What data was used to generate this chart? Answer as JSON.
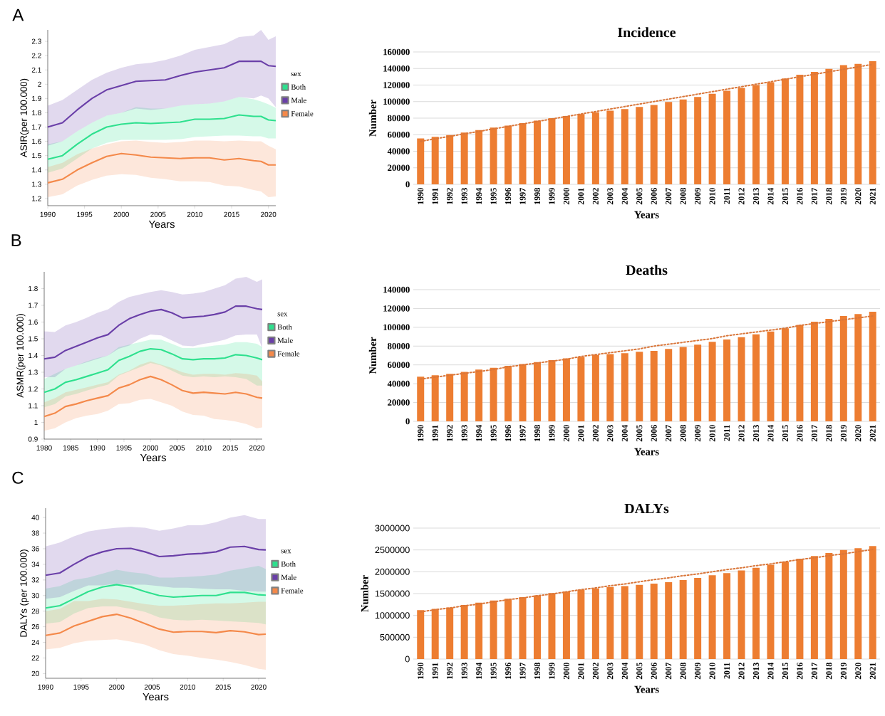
{
  "chart_data": [
    {
      "type": "line",
      "title": "A",
      "xlabel": "Years",
      "ylabel": "ASIR(per 100.000)",
      "legend_title": "sex",
      "legend": "right",
      "xlim": [
        1990,
        2021
      ],
      "ylim": [
        1.15,
        2.38
      ],
      "xticks": [
        1990,
        1995,
        2000,
        2005,
        2010,
        2015,
        2020
      ],
      "yticks": [
        1.2,
        1.3,
        1.4,
        1.5,
        1.6,
        1.7,
        1.8,
        1.9,
        2,
        2.1,
        2.2,
        2.3
      ],
      "x": [
        1990,
        1992,
        1994,
        1996,
        1998,
        2000,
        2002,
        2004,
        2006,
        2008,
        2010,
        2012,
        2014,
        2016,
        2018,
        2019,
        2020,
        2021
      ],
      "series": [
        {
          "name": "Both",
          "color": "#2ee08e",
          "values": [
            1.475,
            1.5,
            1.58,
            1.65,
            1.7,
            1.72,
            1.73,
            1.725,
            1.73,
            1.735,
            1.755,
            1.755,
            1.76,
            1.785,
            1.775,
            1.775,
            1.75,
            1.745
          ],
          "upper": [
            1.58,
            1.6,
            1.67,
            1.73,
            1.78,
            1.8,
            1.84,
            1.83,
            1.83,
            1.85,
            1.86,
            1.865,
            1.88,
            1.91,
            1.895,
            1.88,
            1.86,
            1.835
          ],
          "lower": [
            1.38,
            1.41,
            1.48,
            1.55,
            1.59,
            1.61,
            1.61,
            1.61,
            1.61,
            1.615,
            1.63,
            1.635,
            1.64,
            1.64,
            1.635,
            1.635,
            1.62,
            1.62
          ]
        },
        {
          "name": "Male",
          "color": "#6a3fa8",
          "values": [
            1.7,
            1.73,
            1.82,
            1.9,
            1.96,
            1.99,
            2.02,
            2.025,
            2.03,
            2.06,
            2.085,
            2.1,
            2.115,
            2.16,
            2.16,
            2.16,
            2.13,
            2.125
          ],
          "upper": [
            1.85,
            1.89,
            1.96,
            2.03,
            2.08,
            2.115,
            2.14,
            2.15,
            2.17,
            2.2,
            2.24,
            2.26,
            2.28,
            2.33,
            2.34,
            2.38,
            2.31,
            2.335
          ],
          "lower": [
            1.57,
            1.6,
            1.67,
            1.73,
            1.78,
            1.8,
            1.83,
            1.82,
            1.83,
            1.85,
            1.86,
            1.865,
            1.88,
            1.91,
            1.9,
            1.92,
            1.9,
            1.84
          ]
        },
        {
          "name": "Female",
          "color": "#f4894a",
          "values": [
            1.31,
            1.335,
            1.4,
            1.45,
            1.495,
            1.515,
            1.505,
            1.49,
            1.485,
            1.48,
            1.485,
            1.485,
            1.47,
            1.48,
            1.465,
            1.46,
            1.435,
            1.435
          ],
          "upper": [
            1.42,
            1.45,
            1.51,
            1.55,
            1.58,
            1.6,
            1.605,
            1.595,
            1.59,
            1.595,
            1.605,
            1.605,
            1.6,
            1.605,
            1.6,
            1.6,
            1.57,
            1.545
          ],
          "lower": [
            1.21,
            1.23,
            1.29,
            1.33,
            1.36,
            1.37,
            1.365,
            1.345,
            1.335,
            1.32,
            1.32,
            1.315,
            1.29,
            1.285,
            1.26,
            1.25,
            1.21,
            1.215
          ]
        }
      ]
    },
    {
      "type": "bar",
      "title": "Incidence",
      "xlabel": "Years",
      "ylabel": "Number",
      "grid": "y",
      "ylim": [
        0,
        160000
      ],
      "yticks": [
        0,
        20000,
        40000,
        60000,
        80000,
        100000,
        120000,
        140000,
        160000
      ],
      "categories": [
        "1990",
        "1991",
        "1992",
        "1993",
        "1994",
        "1995",
        "1996",
        "1997",
        "1998",
        "1999",
        "2000",
        "2001",
        "2002",
        "2003",
        "2004",
        "2005",
        "2006",
        "2007",
        "2008",
        "2009",
        "2010",
        "2011",
        "2012",
        "2013",
        "2014",
        "2015",
        "2016",
        "2017",
        "2018",
        "2019",
        "2020",
        "2021"
      ],
      "series": [
        {
          "color": "#ed7d31",
          "values": [
            55500,
            57500,
            59500,
            62500,
            65500,
            68500,
            71000,
            74000,
            77000,
            80000,
            82500,
            85000,
            87000,
            89000,
            91000,
            93500,
            96000,
            99500,
            102500,
            105500,
            109500,
            113000,
            116500,
            120000,
            123500,
            128000,
            132500,
            136000,
            139500,
            144000,
            145500,
            149000
          ]
        },
        {
          "type": "line",
          "values": [
            52000,
            55000,
            58000,
            61000,
            64000,
            67000,
            70000,
            73000,
            76000,
            79000,
            82000,
            85000,
            88000,
            91000,
            94000,
            97000,
            100000,
            103000,
            106000,
            109000,
            112000,
            115000,
            118000,
            121000,
            124000,
            127000,
            130000,
            133000,
            136000,
            139000,
            142000,
            145000
          ],
          "color": "#d9763a",
          "line_style": "dotted"
        }
      ]
    },
    {
      "type": "line",
      "title": "B",
      "xlabel": "Years",
      "ylabel": "ASMR(per 100.000)",
      "legend_title": "sex",
      "legend": "right",
      "xlim": [
        1980,
        2021
      ],
      "ylim": [
        0.9,
        1.9
      ],
      "xticks": [
        1980,
        1985,
        1990,
        1995,
        2000,
        2005,
        2010,
        2015,
        2020
      ],
      "yticks": [
        0.9,
        1,
        1.1,
        1.2,
        1.3,
        1.4,
        1.5,
        1.6,
        1.7,
        1.8
      ],
      "x": [
        1980,
        1982,
        1984,
        1986,
        1988,
        1990,
        1992,
        1994,
        1996,
        1998,
        2000,
        2002,
        2004,
        2006,
        2008,
        2010,
        2012,
        2014,
        2016,
        2018,
        2020,
        2021
      ],
      "series": [
        {
          "name": "Both",
          "color": "#2ee08e",
          "values": [
            1.18,
            1.2,
            1.24,
            1.255,
            1.275,
            1.295,
            1.315,
            1.37,
            1.395,
            1.425,
            1.44,
            1.435,
            1.41,
            1.38,
            1.375,
            1.38,
            1.38,
            1.385,
            1.405,
            1.4,
            1.385,
            1.375
          ],
          "upper": [
            1.26,
            1.29,
            1.32,
            1.34,
            1.365,
            1.385,
            1.4,
            1.45,
            1.465,
            1.48,
            1.495,
            1.495,
            1.47,
            1.445,
            1.445,
            1.45,
            1.46,
            1.465,
            1.48,
            1.48,
            1.47,
            1.45
          ],
          "lower": [
            1.09,
            1.11,
            1.155,
            1.17,
            1.19,
            1.21,
            1.225,
            1.28,
            1.305,
            1.33,
            1.355,
            1.34,
            1.31,
            1.28,
            1.27,
            1.275,
            1.27,
            1.275,
            1.27,
            1.26,
            1.22,
            1.22
          ]
        },
        {
          "name": "Male",
          "color": "#6a3fa8",
          "values": [
            1.38,
            1.39,
            1.43,
            1.455,
            1.48,
            1.505,
            1.525,
            1.58,
            1.62,
            1.645,
            1.665,
            1.675,
            1.655,
            1.625,
            1.63,
            1.635,
            1.645,
            1.66,
            1.695,
            1.695,
            1.68,
            1.675
          ],
          "upper": [
            1.545,
            1.54,
            1.58,
            1.6,
            1.625,
            1.655,
            1.675,
            1.72,
            1.75,
            1.765,
            1.78,
            1.79,
            1.78,
            1.765,
            1.77,
            1.78,
            1.8,
            1.82,
            1.86,
            1.87,
            1.84,
            1.855
          ],
          "lower": [
            1.27,
            1.27,
            1.32,
            1.34,
            1.36,
            1.38,
            1.4,
            1.44,
            1.46,
            1.5,
            1.525,
            1.52,
            1.49,
            1.46,
            1.455,
            1.47,
            1.48,
            1.495,
            1.52,
            1.525,
            1.525,
            1.445
          ]
        },
        {
          "name": "Female",
          "color": "#f4894a",
          "values": [
            1.035,
            1.055,
            1.095,
            1.11,
            1.13,
            1.145,
            1.16,
            1.205,
            1.225,
            1.255,
            1.275,
            1.255,
            1.225,
            1.19,
            1.175,
            1.18,
            1.175,
            1.17,
            1.18,
            1.17,
            1.15,
            1.145
          ],
          "upper": [
            1.12,
            1.145,
            1.18,
            1.195,
            1.21,
            1.225,
            1.24,
            1.285,
            1.31,
            1.345,
            1.365,
            1.345,
            1.325,
            1.3,
            1.285,
            1.29,
            1.29,
            1.285,
            1.295,
            1.29,
            1.28,
            1.245
          ],
          "lower": [
            0.95,
            0.965,
            1.0,
            1.025,
            1.04,
            1.05,
            1.07,
            1.11,
            1.115,
            1.135,
            1.14,
            1.12,
            1.1,
            1.065,
            1.045,
            1.04,
            1.02,
            1.015,
            1.005,
            0.99,
            0.965,
            0.97
          ]
        }
      ]
    },
    {
      "type": "bar",
      "title": "Deaths",
      "xlabel": "Years",
      "ylabel": "Number",
      "grid": "y",
      "ylim": [
        0,
        140000
      ],
      "yticks": [
        0,
        20000,
        40000,
        60000,
        80000,
        100000,
        120000,
        140000
      ],
      "categories": [
        "1990",
        "1991",
        "1992",
        "1993",
        "1994",
        "1995",
        "1996",
        "1997",
        "1998",
        "1999",
        "2000",
        "2001",
        "2002",
        "2003",
        "2004",
        "2005",
        "2006",
        "2007",
        "2008",
        "2009",
        "2010",
        "2011",
        "2012",
        "2013",
        "2014",
        "2015",
        "2016",
        "2017",
        "2018",
        "2019",
        "2020",
        "2021"
      ],
      "series": [
        {
          "color": "#ed7d31",
          "values": [
            47500,
            49000,
            50500,
            52500,
            55000,
            57000,
            59000,
            61000,
            63000,
            65000,
            67000,
            68500,
            70500,
            71500,
            72500,
            74000,
            75000,
            77000,
            79000,
            81500,
            84500,
            87000,
            89500,
            92500,
            95500,
            99000,
            102500,
            106000,
            109000,
            112000,
            114000,
            116500
          ]
        },
        {
          "type": "line",
          "values": [
            45000,
            47000,
            49000,
            51000,
            53000,
            55000,
            58000,
            60000,
            62000,
            64000,
            66000,
            69000,
            71000,
            73000,
            75000,
            77000,
            80000,
            82000,
            84000,
            86000,
            88000,
            91000,
            93000,
            95000,
            97000,
            99000,
            102000,
            104000,
            106000,
            108000,
            110000,
            112000
          ],
          "color": "#d9763a",
          "line_style": "dotted"
        }
      ]
    },
    {
      "type": "line",
      "title": "C",
      "xlabel": "Years",
      "ylabel": "DALYs (per 100.000)",
      "legend_title": "sex",
      "legend": "right",
      "xlim": [
        1990,
        2021
      ],
      "ylim": [
        19.4,
        41.2
      ],
      "xticks": [
        1990,
        1995,
        2000,
        2005,
        2010,
        2015,
        2020
      ],
      "yticks": [
        20,
        22,
        24,
        26,
        28,
        30,
        32,
        34,
        36,
        38,
        40
      ],
      "x": [
        1990,
        1992,
        1994,
        1996,
        1998,
        2000,
        2002,
        2004,
        2006,
        2008,
        2010,
        2012,
        2014,
        2016,
        2018,
        2020,
        2021
      ],
      "series": [
        {
          "name": "Both",
          "color": "#2ee08e",
          "values": [
            28.4,
            28.7,
            29.6,
            30.5,
            31.1,
            31.4,
            31.1,
            30.5,
            30.0,
            29.8,
            29.9,
            30.0,
            30.0,
            30.4,
            30.4,
            30.1,
            30.05
          ],
          "upper": [
            30.9,
            31.2,
            32.0,
            32.3,
            32.8,
            33.3,
            33.0,
            32.8,
            32.3,
            32.3,
            32.4,
            32.5,
            32.7,
            33.2,
            33.5,
            33.8,
            33.4
          ],
          "lower": [
            26.4,
            26.6,
            27.7,
            28.4,
            28.6,
            28.6,
            28.3,
            27.9,
            27.2,
            26.9,
            26.8,
            26.9,
            26.8,
            26.7,
            26.6,
            26.5,
            26.3
          ]
        },
        {
          "name": "Male",
          "color": "#6a3fa8",
          "values": [
            32.6,
            32.9,
            34.0,
            35.0,
            35.6,
            36.0,
            36.05,
            35.6,
            35.0,
            35.1,
            35.3,
            35.4,
            35.6,
            36.2,
            36.3,
            35.9,
            35.85
          ],
          "upper": [
            36.3,
            36.8,
            37.6,
            38.2,
            38.5,
            38.7,
            38.8,
            38.7,
            38.3,
            38.6,
            39.0,
            39.0,
            39.4,
            40.0,
            40.3,
            39.8,
            39.8
          ],
          "lower": [
            29.6,
            29.8,
            30.6,
            31.3,
            31.3,
            31.5,
            31.4,
            31.4,
            31.2,
            31.0,
            31.0,
            30.9,
            30.8,
            30.8,
            30.6,
            30.5,
            30.5
          ]
        },
        {
          "name": "Female",
          "color": "#f4894a",
          "values": [
            24.9,
            25.2,
            26.1,
            26.7,
            27.3,
            27.6,
            27.1,
            26.4,
            25.7,
            25.3,
            25.4,
            25.4,
            25.25,
            25.5,
            25.35,
            25.0,
            25.05
          ],
          "upper": [
            28.0,
            28.3,
            29.3,
            29.3,
            29.6,
            29.5,
            29.2,
            28.9,
            28.7,
            28.7,
            28.8,
            28.9,
            29.0,
            29.0,
            29.1,
            29.2,
            29.2
          ],
          "lower": [
            23.1,
            23.3,
            23.9,
            24.2,
            24.3,
            24.4,
            24.1,
            23.7,
            23.0,
            22.5,
            22.3,
            22.0,
            21.8,
            21.5,
            21.1,
            20.6,
            20.5
          ]
        }
      ]
    },
    {
      "type": "bar",
      "title": "DALYs",
      "xlabel": "Years",
      "ylabel": "Number",
      "grid": "y",
      "ylim": [
        0,
        3000000
      ],
      "yticks": [
        0,
        500000,
        1000000,
        1500000,
        2000000,
        2500000,
        3000000
      ],
      "categories": [
        "1990",
        "1991",
        "1992",
        "1993",
        "1994",
        "1995",
        "1996",
        "1997",
        "1998",
        "1999",
        "2000",
        "2001",
        "2002",
        "2003",
        "2004",
        "2005",
        "2006",
        "2007",
        "2008",
        "2009",
        "2010",
        "2011",
        "2012",
        "2013",
        "2014",
        "2015",
        "2016",
        "2017",
        "2018",
        "2019",
        "2020",
        "2021"
      ],
      "series": [
        {
          "color": "#ed7d31",
          "values": [
            1120000,
            1150000,
            1180000,
            1240000,
            1290000,
            1340000,
            1380000,
            1420000,
            1460000,
            1510000,
            1550000,
            1590000,
            1620000,
            1650000,
            1670000,
            1700000,
            1730000,
            1760000,
            1810000,
            1860000,
            1920000,
            1970000,
            2030000,
            2090000,
            2160000,
            2230000,
            2300000,
            2360000,
            2430000,
            2500000,
            2540000,
            2590000
          ]
        },
        {
          "type": "line",
          "values": [
            1080000,
            1130000,
            1170000,
            1220000,
            1260000,
            1310000,
            1360000,
            1400000,
            1450000,
            1490000,
            1540000,
            1590000,
            1630000,
            1680000,
            1720000,
            1770000,
            1820000,
            1860000,
            1910000,
            1950000,
            2000000,
            2050000,
            2090000,
            2140000,
            2180000,
            2230000,
            2280000,
            2320000,
            2370000,
            2410000,
            2460000,
            2510000
          ],
          "color": "#d9763a",
          "line_style": "dotted"
        }
      ]
    }
  ]
}
